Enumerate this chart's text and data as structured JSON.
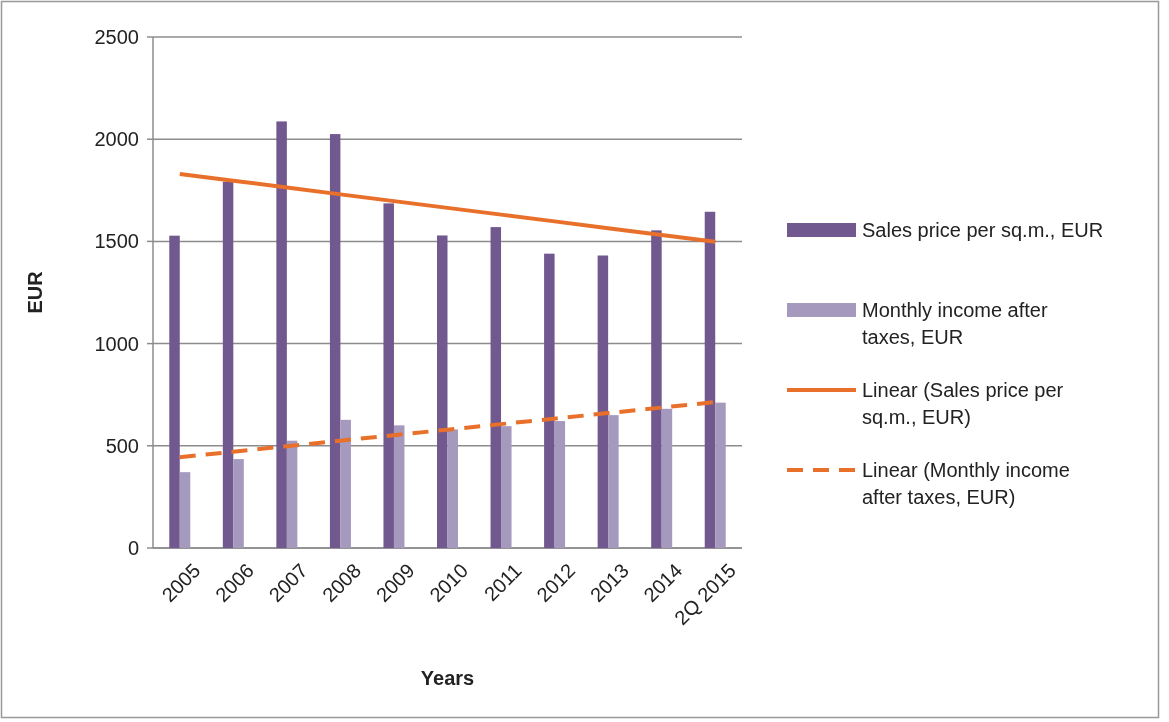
{
  "chart_data": {
    "type": "bar",
    "xlabel": "Years",
    "ylabel": "EUR",
    "categories": [
      "2005",
      "2006",
      "2007",
      "2008",
      "2009",
      "2010",
      "2011",
      "2012",
      "2013",
      "2014",
      "2Q 2015"
    ],
    "series": [
      {
        "name": "Sales price per sq.m., EUR",
        "color": "#71588f",
        "values": [
          1528,
          1792,
          2087,
          2025,
          1686,
          1529,
          1570,
          1440,
          1431,
          1554,
          1645
        ]
      },
      {
        "name": "Monthly income after taxes, EUR",
        "color": "#a699be",
        "values": [
          371,
          435,
          525,
          627,
          600,
          580,
          596,
          621,
          650,
          681,
          711
        ]
      },
      {
        "name": "Linear (Sales price per sq.m., EUR)",
        "type": "line",
        "color": "#e8702a",
        "line_style": "solid",
        "values": [
          1830,
          1797,
          1764,
          1730,
          1697,
          1664,
          1631,
          1598,
          1564,
          1531,
          1498
        ]
      },
      {
        "name": "Linear (Monthly income after taxes, EUR)",
        "type": "line",
        "color": "#e8702a",
        "line_style": "dashed",
        "values": [
          444,
          471,
          498,
          525,
          552,
          579,
          606,
          633,
          660,
          687,
          714
        ]
      }
    ],
    "ylim": [
      0,
      2500
    ],
    "yticks": [
      0,
      500,
      1000,
      1500,
      2000,
      2500
    ],
    "grid": "y",
    "legend": "right"
  }
}
